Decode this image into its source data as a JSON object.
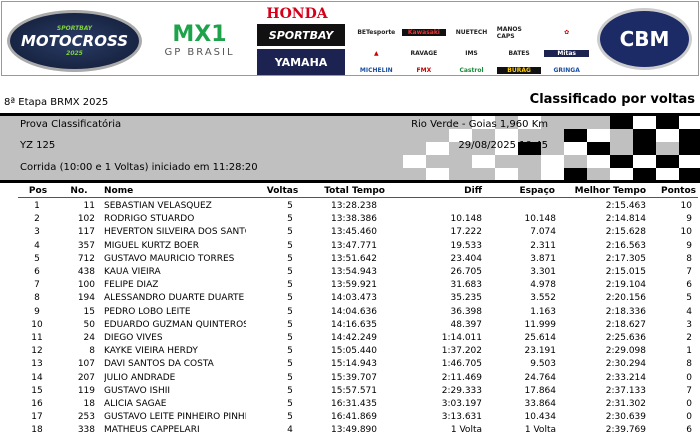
{
  "banner": {
    "logos": [
      "SPORTBAY Campeonato Brasileiro de MOTOCROSS 2025",
      "MX1 GP BRASIL",
      "HONDA",
      "SPORTBAY",
      "YAMAHA RACING",
      "BETesporte",
      "Kawasaki",
      "NUETECH",
      "MANOS CAPS",
      "MICHELIN",
      "IMS",
      "BATES",
      "Mitas",
      "Castrol",
      "BURAG",
      "CBM"
    ]
  },
  "event": "8ª Etapa BRMX 2025",
  "report_title": "Classificado por voltas",
  "info": {
    "session": "Prova Classificatória",
    "location": "Rio Verde - Goias 1,960 Km",
    "category": "YZ 125",
    "datetime": "29/08/2025 10:45",
    "race": "Corrida (10:00 e 1 Voltas) iniciado em 11:28:20"
  },
  "columns": [
    "Pos",
    "No.",
    "Nome",
    "Voltas",
    "Total Tempo",
    "Diff",
    "Espaço",
    "Melhor Tempo",
    "Pontos"
  ],
  "rows": [
    [
      "1",
      "11",
      "SEBASTIAN VELASQUEZ",
      "5",
      "13:28.238",
      "",
      "",
      "2:15.463",
      "10"
    ],
    [
      "2",
      "102",
      "RODRIGO STUARDO",
      "5",
      "13:38.386",
      "10.148",
      "10.148",
      "2:14.814",
      "9"
    ],
    [
      "3",
      "117",
      "HEVERTON SILVEIRA DOS SANTOS",
      "5",
      "13:45.460",
      "17.222",
      "7.074",
      "2:15.628",
      "10"
    ],
    [
      "4",
      "357",
      "MIGUEL KURTZ BOER",
      "5",
      "13:47.771",
      "19.533",
      "2.311",
      "2:16.563",
      "9"
    ],
    [
      "5",
      "712",
      "GUSTAVO MAURICIO TORRES",
      "5",
      "13:51.642",
      "23.404",
      "3.871",
      "2:17.305",
      "8"
    ],
    [
      "6",
      "438",
      "KAUÃ VIEIRA",
      "5",
      "13:54.943",
      "26.705",
      "3.301",
      "2:15.015",
      "7"
    ],
    [
      "7",
      "100",
      "FELIPE DIAZ",
      "5",
      "13:59.921",
      "31.683",
      "4.978",
      "2:19.104",
      "6"
    ],
    [
      "8",
      "194",
      "ALESSANDRO DUARTE DUARTE",
      "5",
      "14:03.473",
      "35.235",
      "3.552",
      "2:20.156",
      "5"
    ],
    [
      "9",
      "15",
      "PEDRO LOBO LEITE",
      "5",
      "14:04.636",
      "36.398",
      "1.163",
      "2:18.336",
      "4"
    ],
    [
      "10",
      "50",
      "EDUARDO GUZMAN QUINTEROS",
      "5",
      "14:16.635",
      "48.397",
      "11.999",
      "2:18.627",
      "3"
    ],
    [
      "11",
      "24",
      "DIEGO VIVES",
      "5",
      "14:42.249",
      "1:14.011",
      "25.614",
      "2:25.636",
      "2"
    ],
    [
      "12",
      "8",
      "KAYKE VIEIRA HERDY",
      "5",
      "15:05.440",
      "1:37.202",
      "23.191",
      "2:29.098",
      "1"
    ],
    [
      "13",
      "107",
      "DAVI SANTOS DA COSTA",
      "5",
      "15:14.943",
      "1:46.705",
      "9.503",
      "2:30.294",
      "8"
    ],
    [
      "14",
      "207",
      "JULIO ANDRADE",
      "5",
      "15:39.707",
      "2:11.469",
      "24.764",
      "2:33.214",
      "0"
    ],
    [
      "15",
      "119",
      "GUSTAVO ISHII",
      "5",
      "15:57.571",
      "2:29.333",
      "17.864",
      "2:37.133",
      "7"
    ],
    [
      "16",
      "18",
      "ALICIA SAGAE",
      "5",
      "16:31.435",
      "3:03.197",
      "33.864",
      "2:31.302",
      "0"
    ],
    [
      "17",
      "253",
      "GUSTAVO LEITE PINHEIRO PINHEIRO",
      "5",
      "16:41.869",
      "3:13.631",
      "10.434",
      "2:30.639",
      "0"
    ],
    [
      "18",
      "338",
      "MATHEUS CAPPELARI",
      "4",
      "13:49.890",
      "1 Volta",
      "1 Volta",
      "2:39.769",
      "6"
    ]
  ]
}
